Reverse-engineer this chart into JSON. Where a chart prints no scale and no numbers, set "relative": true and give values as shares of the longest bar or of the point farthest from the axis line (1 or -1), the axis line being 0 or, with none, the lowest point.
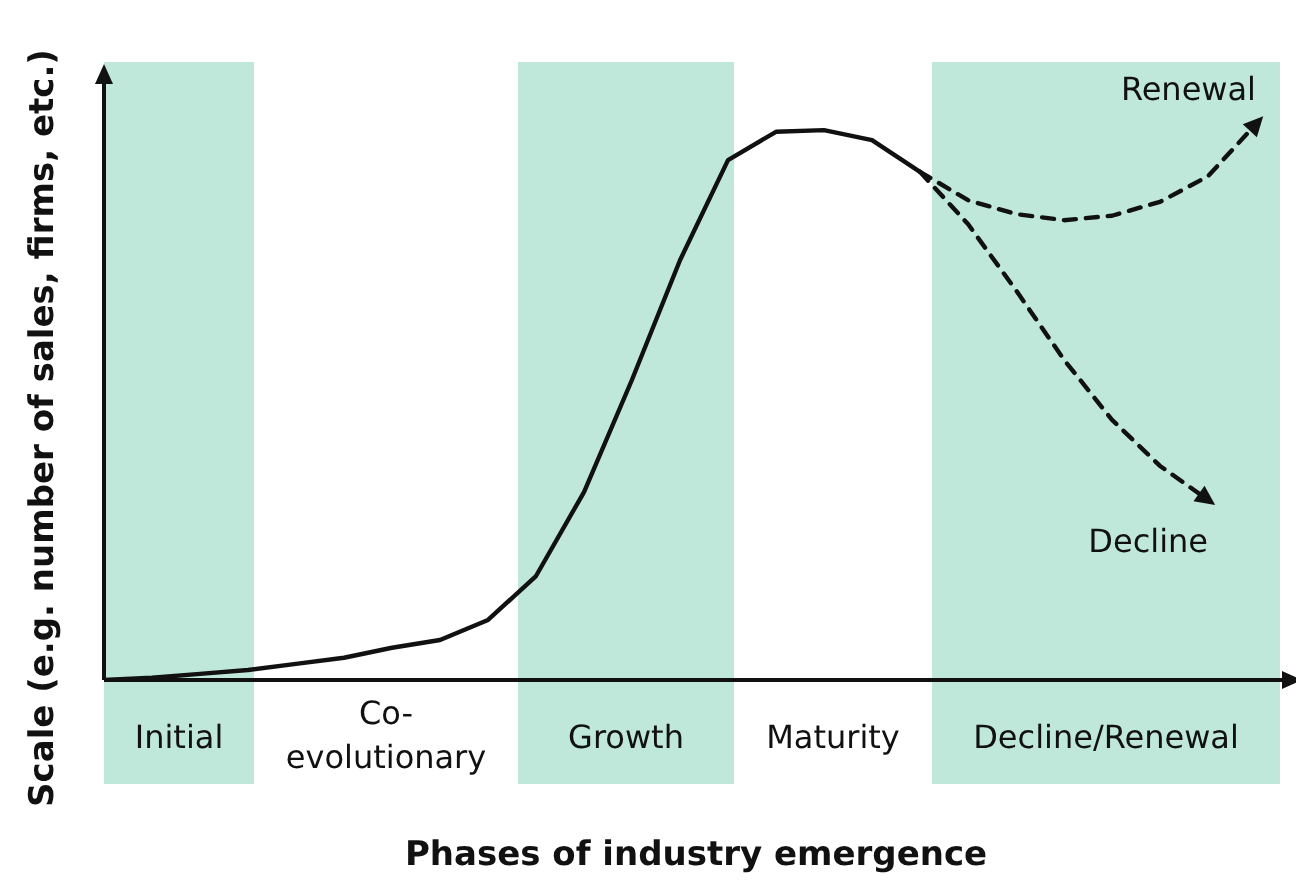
{
  "chart_data": {
    "type": "line",
    "relative": true,
    "xlabel": "Phases of industry emergence",
    "ylabel": "Scale (e.g. number of sales, firms, etc.)",
    "marker": "none",
    "categories": [
      null,
      null,
      null,
      null,
      null,
      null,
      null,
      null,
      null,
      null,
      null,
      null,
      null,
      null,
      null,
      null,
      null,
      null,
      null,
      null,
      null,
      null,
      null,
      null,
      null
    ],
    "series": [
      {
        "color": "#111111",
        "line_style": "solid",
        "values": [
          0,
          0.004,
          0.011,
          0.018,
          0.029,
          0.04,
          0.058,
          0.072,
          0.108,
          0.187,
          0.338,
          0.54,
          0.755,
          0.935,
          0.986,
          0.989,
          0.971,
          0.914,
          null,
          null,
          null,
          null,
          null,
          null,
          null
        ]
      },
      {
        "name": "Renewal",
        "color": "#111111",
        "line_style": "dashed",
        "values": [
          null,
          null,
          null,
          null,
          null,
          null,
          null,
          null,
          null,
          null,
          null,
          null,
          null,
          null,
          null,
          null,
          null,
          0.914,
          0.863,
          0.838,
          0.827,
          0.835,
          0.86,
          0.906,
          1
        ]
      },
      {
        "name": "Decline",
        "color": "#111111",
        "line_style": "dashed",
        "values": [
          null,
          null,
          null,
          null,
          null,
          null,
          null,
          null,
          null,
          null,
          null,
          null,
          null,
          null,
          null,
          null,
          null,
          0.914,
          0.82,
          0.701,
          0.576,
          0.468,
          0.385,
          0.324,
          null
        ]
      }
    ],
    "annotations": [
      "Initial",
      "Co-evolutionary",
      "Growth",
      "Maturity",
      "Decline/Renewal"
    ]
  }
}
